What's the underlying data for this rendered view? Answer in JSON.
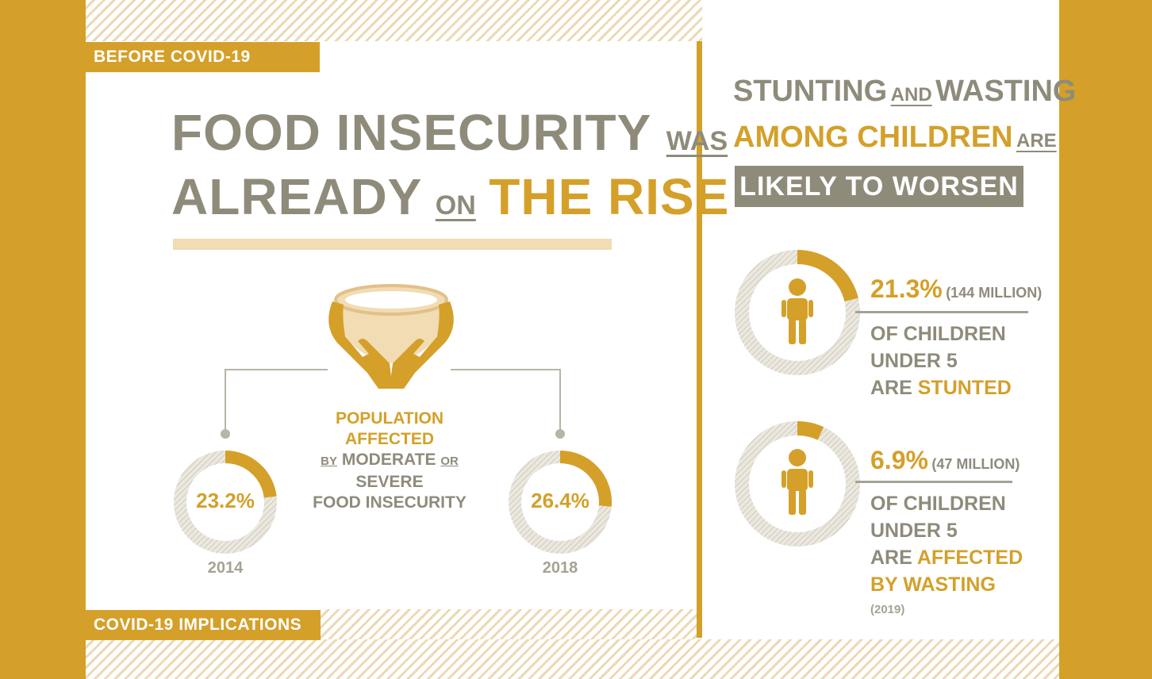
{
  "tags": {
    "before": "BEFORE COVID-19",
    "implications": "COVID-19 IMPLICATIONS"
  },
  "left": {
    "title_1a": "FOOD INSECURITY",
    "title_1b": "WAS",
    "title_2a": "ALREADY",
    "title_2b": "ON",
    "title_2c": "THE RISE",
    "population_1": "POPULATION AFFECTED",
    "population_2a": "BY",
    "population_2b": "MODERATE",
    "population_2c": "OR",
    "population_2d": "SEVERE",
    "population_3": "FOOD INSECURITY",
    "donut_2014": {
      "value": "23.2%",
      "year": "2014",
      "fraction": 0.232
    },
    "donut_2018": {
      "value": "26.4%",
      "year": "2018",
      "fraction": 0.264
    }
  },
  "right": {
    "head_1a": "STUNTING",
    "head_1b": "AND",
    "head_1c": "WASTING",
    "head_2a": "AMONG CHILDREN",
    "head_2b": "ARE",
    "head_3": "LIKELY TO WORSEN",
    "stunting": {
      "pct": "21.3%",
      "count": "(144 MILLION)",
      "line_1": "OF CHILDREN",
      "line_2": "UNDER 5",
      "line_3a": "ARE",
      "line_3b": "STUNTED",
      "fraction": 0.213
    },
    "wasting": {
      "pct": "6.9%",
      "count": "(47 MILLION)",
      "line_1": "OF CHILDREN",
      "line_2": "UNDER 5",
      "line_3a": "ARE",
      "line_3b": "AFFECTED",
      "line_4": "BY WASTING",
      "year": "(2019)",
      "fraction": 0.069
    }
  },
  "colors": {
    "gold": "#d4a02a",
    "gray": "#8f8b7b",
    "light_gold": "#f1dcb3"
  }
}
